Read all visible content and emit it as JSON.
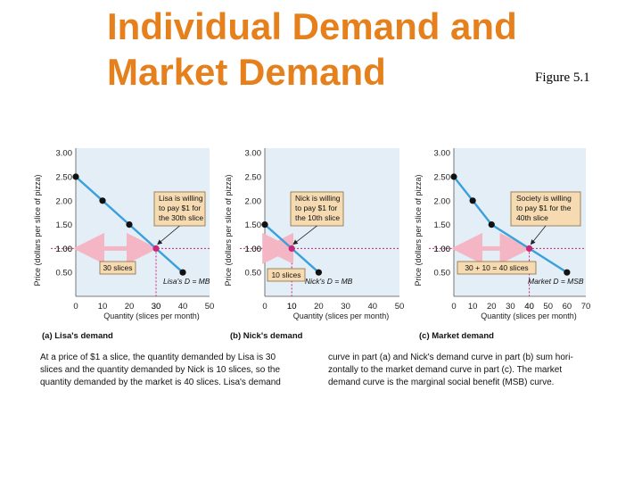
{
  "slide": {
    "title_lines": [
      "Individual Demand and",
      "Market Demand"
    ],
    "figure_label": "Figure 5.1"
  },
  "colors": {
    "title": "#e5801c",
    "curve": "#3aa0dc",
    "point": "#111111",
    "highlight_point": "#c8287a",
    "price_line": "#c8287a",
    "arrow": "#f4b6c4",
    "box_fill": "#f6dbb2",
    "box_border": "#8a6a40",
    "plot_bg": "#e4eef7"
  },
  "chart_data": [
    {
      "type": "line",
      "caption": "(a) Lisa's demand",
      "xlabel": "Quantity (slices per month)",
      "ylabel": "Price (dollars per slice of pizza)",
      "xticks": [
        0,
        10,
        20,
        30,
        40,
        50
      ],
      "yticks": [
        "3.00",
        "2.50",
        "2.00",
        "1.50",
        "1.00",
        "0.50"
      ],
      "xlim": [
        0,
        50
      ],
      "ylim": [
        0,
        3.25
      ],
      "series": [
        {
          "name": "Lisa's D = MB",
          "x": [
            0,
            10,
            20,
            30,
            40
          ],
          "y": [
            2.5,
            2.0,
            1.5,
            1.0,
            0.5
          ]
        }
      ],
      "highlight": {
        "x": 30,
        "y": 1.0,
        "x_tick_label": "30",
        "y_tick_label": "1.00"
      },
      "annotation": [
        "Lisa is willing",
        "to pay $1 for",
        "the 30th slice"
      ],
      "quantity_box": "30 slices"
    },
    {
      "type": "line",
      "caption": "(b) Nick's demand",
      "xlabel": "Quantity (slices per month)",
      "ylabel": "Price (dollars per slice of pizza)",
      "xticks": [
        0,
        10,
        20,
        30,
        40,
        50
      ],
      "yticks": [
        "3.00",
        "2.50",
        "2.00",
        "1.50",
        "1.00",
        "0.50"
      ],
      "xlim": [
        0,
        50
      ],
      "ylim": [
        0,
        3.25
      ],
      "series": [
        {
          "name": "Nick's D = MB",
          "x": [
            0,
            10,
            20
          ],
          "y": [
            1.5,
            1.0,
            0.5
          ]
        }
      ],
      "highlight": {
        "x": 10,
        "y": 1.0,
        "x_tick_label": "10",
        "y_tick_label": "1.00"
      },
      "annotation": [
        "Nick is willing",
        "to pay $1 for",
        "the 10th slice"
      ],
      "quantity_box": "10 slices"
    },
    {
      "type": "line",
      "caption": "(c) Market demand",
      "xlabel": "Quantity (slices per month)",
      "ylabel": "Price (dollars per slice of pizza)",
      "xticks": [
        0,
        10,
        20,
        30,
        40,
        50,
        60,
        70
      ],
      "yticks": [
        "3.00",
        "2.50",
        "2.00",
        "1.50",
        "1.00",
        "0.50"
      ],
      "xlim": [
        0,
        70
      ],
      "ylim": [
        0,
        3.25
      ],
      "series": [
        {
          "name": "Market D = MSB",
          "x": [
            0,
            10,
            20,
            40,
            60
          ],
          "y": [
            2.5,
            2.0,
            1.5,
            1.0,
            0.5
          ]
        }
      ],
      "highlight": {
        "x": 40,
        "y": 1.0,
        "x_tick_label": "40",
        "y_tick_label": "1.00"
      },
      "annotation": [
        "Society is willing",
        "to pay $1 for the",
        "40th slice"
      ],
      "quantity_box": "30 + 10 = 40 slices"
    }
  ],
  "caption_text": {
    "left_lines": [
      "At a price of $1 a slice, the quantity demanded by Lisa is 30",
      "slices and the quantity demanded by Nick is 10 slices, so the",
      "quantity demanded by the market is 40 slices. Lisa's demand"
    ],
    "right_lines": [
      "curve in part (a) and Nick's demand curve in part (b) sum hori-",
      "zontally to the market demand curve in part (c). The market",
      "demand curve is the marginal social benefit (MSB) curve."
    ]
  }
}
